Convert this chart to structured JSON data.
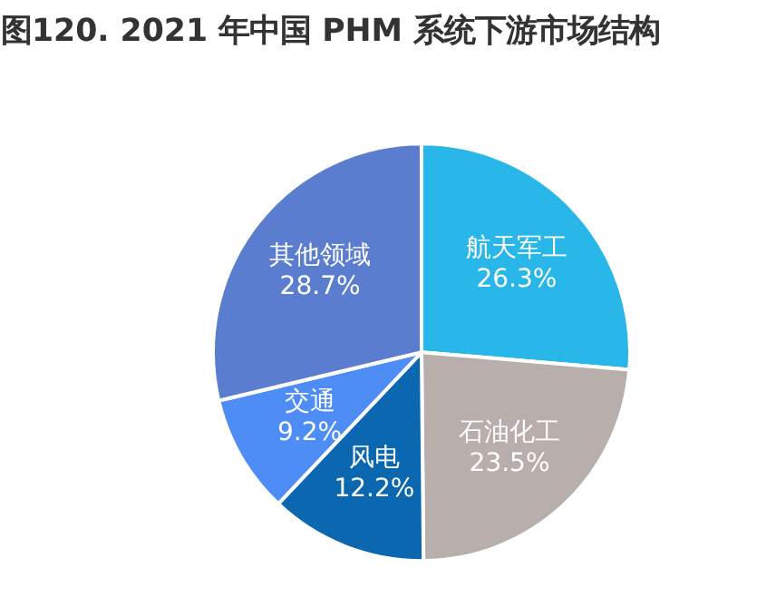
{
  "chart_data": {
    "type": "pie",
    "title": "图120. 2021 年中国 PHM 系统下游市场结构",
    "categories": [
      "航天军工",
      "石油化工",
      "风电",
      "交通",
      "其他领域"
    ],
    "values": [
      26.3,
      23.5,
      12.2,
      9.2,
      28.7
    ],
    "value_labels": [
      "26.3%",
      "23.5%",
      "12.2%",
      "9.2%",
      "28.7%"
    ],
    "colors": [
      "#29b6e9",
      "#b8afac",
      "#0b68b0",
      "#4e8cf6",
      "#5b7dcf"
    ],
    "legend": false
  }
}
